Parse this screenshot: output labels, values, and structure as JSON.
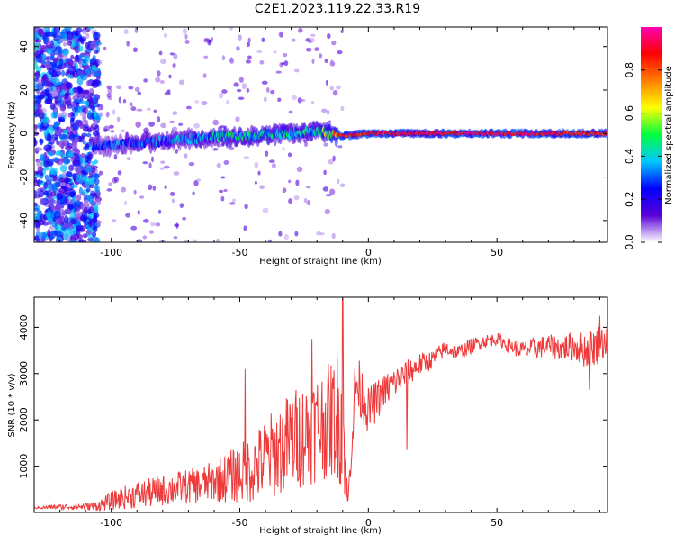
{
  "title": "C2E1.2023.119.22.33.R19",
  "chart_data": [
    {
      "type": "heatmap",
      "xlabel": "Height of straight line (km)",
      "ylabel": "Frequency (Hz)",
      "xlim": [
        -130,
        93
      ],
      "ylim": [
        -50,
        49
      ],
      "x_ticks": [
        -100,
        -50,
        0,
        50
      ],
      "y_ticks": [
        -40,
        -20,
        0,
        20,
        40
      ],
      "colorbar": {
        "label": "Normalized spectral amplitude",
        "range": [
          0.0,
          1.0
        ],
        "ticks": [
          "0.0",
          "0.2",
          "0.4",
          "0.6",
          "0.8"
        ],
        "colors": [
          "#ffffff",
          "#5a00d8",
          "#0000ff",
          "#00c8ff",
          "#00ff40",
          "#ffff00",
          "#ff8000",
          "#ff0000",
          "#ff00b4"
        ]
      },
      "band": {
        "center_hz": [
          {
            "x": -105,
            "y": -6
          },
          {
            "x": -90,
            "y": -4
          },
          {
            "x": -75,
            "y": -3
          },
          {
            "x": -60,
            "y": -1.5
          },
          {
            "x": -45,
            "y": -1
          },
          {
            "x": -30,
            "y": 0
          },
          {
            "x": -20,
            "y": 1
          },
          {
            "x": -10,
            "y": -1
          },
          {
            "x": 0,
            "y": 0
          },
          {
            "x": 20,
            "y": 0
          },
          {
            "x": 50,
            "y": 0
          },
          {
            "x": 92,
            "y": 0
          }
        ],
        "peak_amplitude": [
          {
            "x": -105,
            "y": 0.35
          },
          {
            "x": -80,
            "y": 0.4
          },
          {
            "x": -60,
            "y": 0.5
          },
          {
            "x": -40,
            "y": 0.55
          },
          {
            "x": -20,
            "y": 0.55
          },
          {
            "x": -12,
            "y": 0.9
          },
          {
            "x": 0,
            "y": 0.95
          },
          {
            "x": 50,
            "y": 1.0
          },
          {
            "x": 92,
            "y": 0.9
          }
        ],
        "noise_region_x": [
          -130,
          -105
        ]
      },
      "grid": false
    },
    {
      "type": "line",
      "xlabel": "Height of straight line (km)",
      "ylabel": "SNR (10 * v/v)",
      "xlim": [
        -130,
        93
      ],
      "ylim": [
        0,
        4650
      ],
      "x_ticks": [
        -100,
        -50,
        0,
        50
      ],
      "y_ticks": [
        1000,
        2000,
        3000,
        4000
      ],
      "color": "#ee3a3a",
      "series": [
        {
          "name": "",
          "x": [
            -130,
            -120,
            -110,
            -105,
            -100,
            -95,
            -90,
            -85,
            -80,
            -75,
            -70,
            -65,
            -60,
            -55,
            -50,
            -45,
            -40,
            -35,
            -30,
            -25,
            -20,
            -15,
            -12,
            -10,
            -8,
            -5,
            -2,
            0,
            3,
            6,
            10,
            15,
            20,
            25,
            30,
            35,
            40,
            45,
            50,
            55,
            60,
            65,
            70,
            75,
            80,
            85,
            90,
            93
          ],
          "y": [
            100,
            120,
            130,
            150,
            250,
            320,
            380,
            420,
            480,
            520,
            560,
            600,
            680,
            750,
            850,
            950,
            1150,
            1350,
            1550,
            1700,
            1850,
            2000,
            2100,
            1950,
            150,
            2800,
            2500,
            2200,
            2400,
            2600,
            2800,
            3000,
            3200,
            3300,
            3550,
            3450,
            3600,
            3700,
            3750,
            3600,
            3500,
            3550,
            3600,
            3550,
            3600,
            3500,
            3650,
            3700
          ],
          "noise": [
            20,
            60,
            80,
            120,
            200,
            250,
            300,
            320,
            340,
            360,
            380,
            400,
            450,
            550,
            650,
            750,
            900,
            1000,
            1100,
            1150,
            1200,
            1250,
            1400,
            1500,
            150,
            700,
            600,
            500,
            450,
            400,
            350,
            300,
            250,
            200,
            180,
            170,
            170,
            150,
            130,
            170,
            200,
            230,
            250,
            280,
            330,
            400,
            450,
            300
          ],
          "spikes": [
            {
              "x": -10,
              "y": 4600
            },
            {
              "x": -22,
              "y": 3750
            },
            {
              "x": -48,
              "y": 3100
            },
            {
              "x": 15,
              "y": 1350
            },
            {
              "x": 86,
              "y": 2650
            },
            {
              "x": 90,
              "y": 4250
            }
          ]
        }
      ],
      "grid": false
    }
  ]
}
